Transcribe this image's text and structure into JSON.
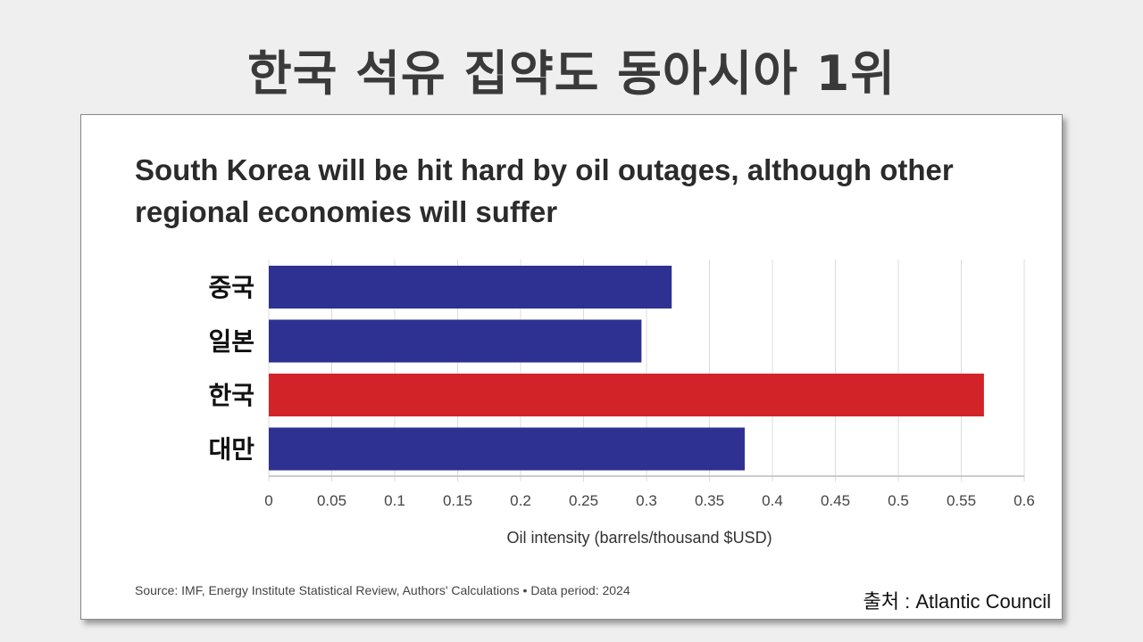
{
  "headline": "한국 석유 집약도 동아시아 1위",
  "credit": "출처 : Atlantic Council",
  "chart_data": {
    "type": "bar",
    "orientation": "horizontal",
    "title": "South Korea will be hit hard by oil outages, although other regional economies will suffer",
    "categories": [
      "중국",
      "일본",
      "한국",
      "대만"
    ],
    "values": [
      0.32,
      0.296,
      0.568,
      0.378
    ],
    "colors": [
      "#2e3192",
      "#2e3192",
      "#d22328",
      "#2e3192"
    ],
    "xlabel": "Oil intensity (barrels/thousand $USD)",
    "ylabel": "",
    "xlim": [
      0,
      0.6
    ],
    "xticks": [
      "0",
      "0.05",
      "0.1",
      "0.15",
      "0.2",
      "0.25",
      "0.3",
      "0.35",
      "0.4",
      "0.45",
      "0.5",
      "0.55",
      "0.6"
    ],
    "grid": "vertical",
    "source": "Source: IMF, Energy Institute Statistical Review, Authors' Calculations • Data period: 2024"
  }
}
